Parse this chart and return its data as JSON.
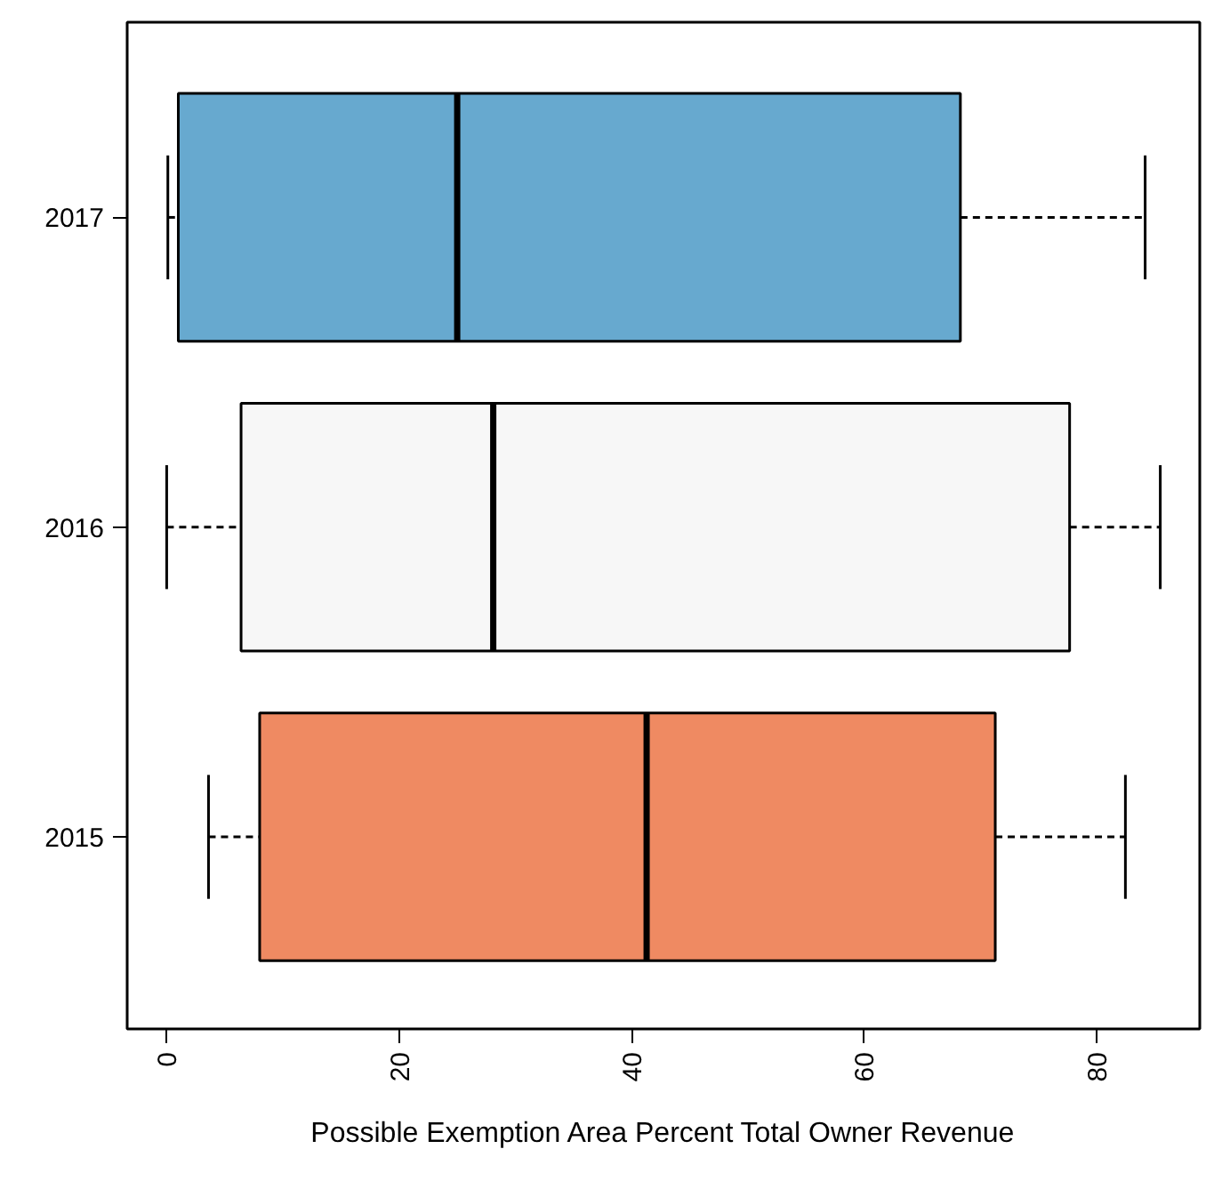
{
  "chart_data": {
    "type": "box",
    "orientation": "horizontal",
    "xlabel": "Possible Exemption Area Percent Total Owner Revenue",
    "categories": [
      "2017",
      "2016",
      "2015"
    ],
    "colors": [
      "#67a9cf",
      "#f7f7f7",
      "#ef8a62"
    ],
    "boxes": [
      {
        "low": 0.1,
        "q1": 1.0,
        "median": 25.0,
        "q3": 68.3,
        "high": 84.2
      },
      {
        "low": 0,
        "q1": 6.4,
        "median": 28.1,
        "q3": 77.7,
        "high": 85.5
      },
      {
        "low": 3.6,
        "q1": 8.0,
        "median": 41.3,
        "q3": 71.3,
        "high": 82.5
      }
    ],
    "xlim": [
      -3.4,
      88.9
    ],
    "xticks": [
      0,
      20,
      40,
      60,
      80
    ],
    "grid": false
  }
}
